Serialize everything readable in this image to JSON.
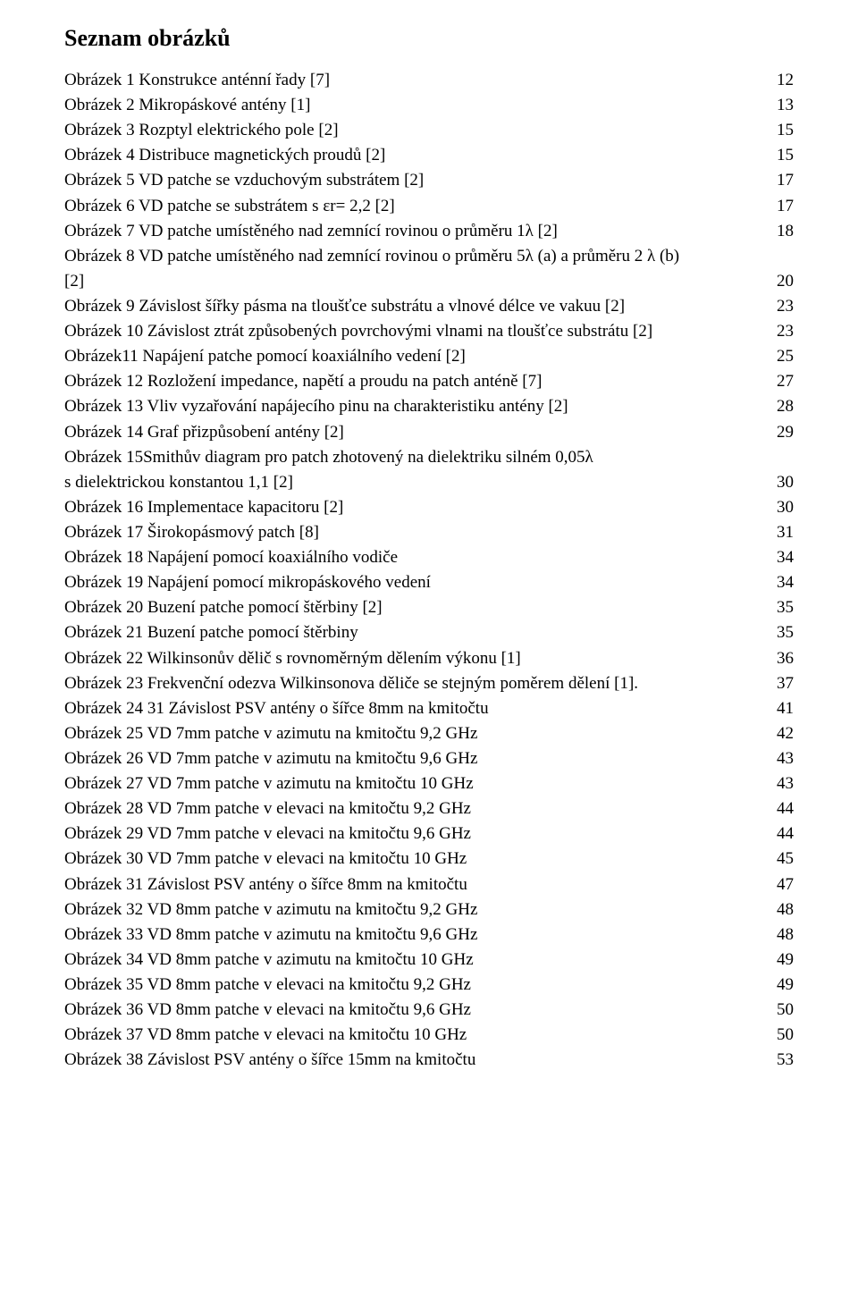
{
  "title": "Seznam obrázků",
  "entries": [
    {
      "label": "Obrázek 1 Konstrukce anténní řady [7]",
      "page": "12"
    },
    {
      "label": "Obrázek 2 Mikropáskové antény [1]",
      "page": "13"
    },
    {
      "label": "Obrázek 3 Rozptyl elektrického pole [2]",
      "page": "15"
    },
    {
      "label": "Obrázek 4 Distribuce magnetických proudů [2]",
      "page": "15"
    },
    {
      "label": "Obrázek 5 VD patche se vzduchovým substrátem [2]",
      "page": "17"
    },
    {
      "label": "Obrázek 6 VD patche se substrátem s εr= 2,2 [2]",
      "page": "17"
    },
    {
      "label": "Obrázek 7 VD patche umístěného nad zemnící rovinou o průměru 1λ [2]",
      "page": "18"
    },
    {
      "label": "Obrázek 8 VD patche umístěného nad zemnící rovinou o průměru 5λ (a) a průměru 2 λ (b)",
      "cont": "[2]",
      "page": "20"
    },
    {
      "label": "Obrázek 9 Závislost šířky pásma na tloušťce substrátu a vlnové délce ve vakuu [2]",
      "page": "23"
    },
    {
      "label": "Obrázek 10 Závislost ztrát způsobených povrchovými vlnami na tloušťce substrátu [2]",
      "page": "23"
    },
    {
      "label": "Obrázek11 Napájení patche pomocí koaxiálního vedení [2]",
      "page": "25"
    },
    {
      "label": "Obrázek 12 Rozložení impedance, napětí a proudu na patch anténě [7]",
      "page": "27"
    },
    {
      "label": "Obrázek 13 Vliv vyzařování napájecího pinu na charakteristiku antény [2]",
      "page": "28"
    },
    {
      "label": "Obrázek 14 Graf přizpůsobení antény [2]",
      "page": "29"
    },
    {
      "label": "Obrázek 15Smithův diagram pro patch zhotovený na dielektriku silném 0,05λ",
      "cont": "s dielektrickou konstantou 1,1 [2]",
      "page": "30"
    },
    {
      "label": "Obrázek 16 Implementace kapacitoru [2]",
      "page": "30"
    },
    {
      "label": "Obrázek 17 Širokopásmový patch [8]",
      "page": "31"
    },
    {
      "label": "Obrázek 18 Napájení pomocí koaxiálního vodiče",
      "page": "34"
    },
    {
      "label": "Obrázek 19 Napájení pomocí mikropáskového vedení",
      "page": "34"
    },
    {
      "label": "Obrázek 20 Buzení patche pomocí štěrbiny [2]",
      "page": "35"
    },
    {
      "label": "Obrázek 21 Buzení patche pomocí štěrbiny",
      "page": "35"
    },
    {
      "label": "Obrázek 22 Wilkinsonův dělič s rovnoměrným dělením výkonu [1]",
      "page": "36"
    },
    {
      "label": "Obrázek 23 Frekvenční odezva Wilkinsonova děliče se stejným poměrem dělení [1].",
      "page": "37"
    },
    {
      "label": "Obrázek 24 31 Závislost PSV antény o šířce 8mm na kmitočtu",
      "page": "41"
    },
    {
      "label": "Obrázek 25 VD 7mm patche v azimutu na kmitočtu 9,2 GHz",
      "page": "42"
    },
    {
      "label": "Obrázek 26 VD 7mm patche v azimutu na kmitočtu 9,6 GHz",
      "page": "43"
    },
    {
      "label": "Obrázek 27 VD 7mm patche v azimutu na kmitočtu 10 GHz",
      "page": "43"
    },
    {
      "label": "Obrázek 28 VD 7mm patche v elevaci na kmitočtu 9,2 GHz",
      "page": "44"
    },
    {
      "label": "Obrázek 29 VD 7mm patche v elevaci na kmitočtu 9,6 GHz",
      "page": "44"
    },
    {
      "label": "Obrázek 30 VD 7mm patche v elevaci na kmitočtu 10 GHz",
      "page": "45"
    },
    {
      "label": "Obrázek 31 Závislost PSV antény o šířce 8mm na kmitočtu",
      "page": "47"
    },
    {
      "label": "Obrázek 32 VD 8mm patche v azimutu na kmitočtu 9,2 GHz",
      "page": "48"
    },
    {
      "label": "Obrázek 33 VD 8mm patche v azimutu na kmitočtu 9,6 GHz",
      "page": "48"
    },
    {
      "label": "Obrázek 34 VD 8mm patche v azimutu na kmitočtu 10 GHz",
      "page": "49"
    },
    {
      "label": "Obrázek 35 VD 8mm patche v elevaci na kmitočtu 9,2 GHz",
      "page": "49"
    },
    {
      "label": "Obrázek 36 VD 8mm patche v elevaci na kmitočtu 9,6 GHz",
      "page": "50"
    },
    {
      "label": "Obrázek 37 VD 8mm patche v elevaci na kmitočtu 10 GHz",
      "page": "50"
    },
    {
      "label": "Obrázek 38 Závislost PSV antény o šířce 15mm na kmitočtu",
      "page": "53"
    }
  ]
}
